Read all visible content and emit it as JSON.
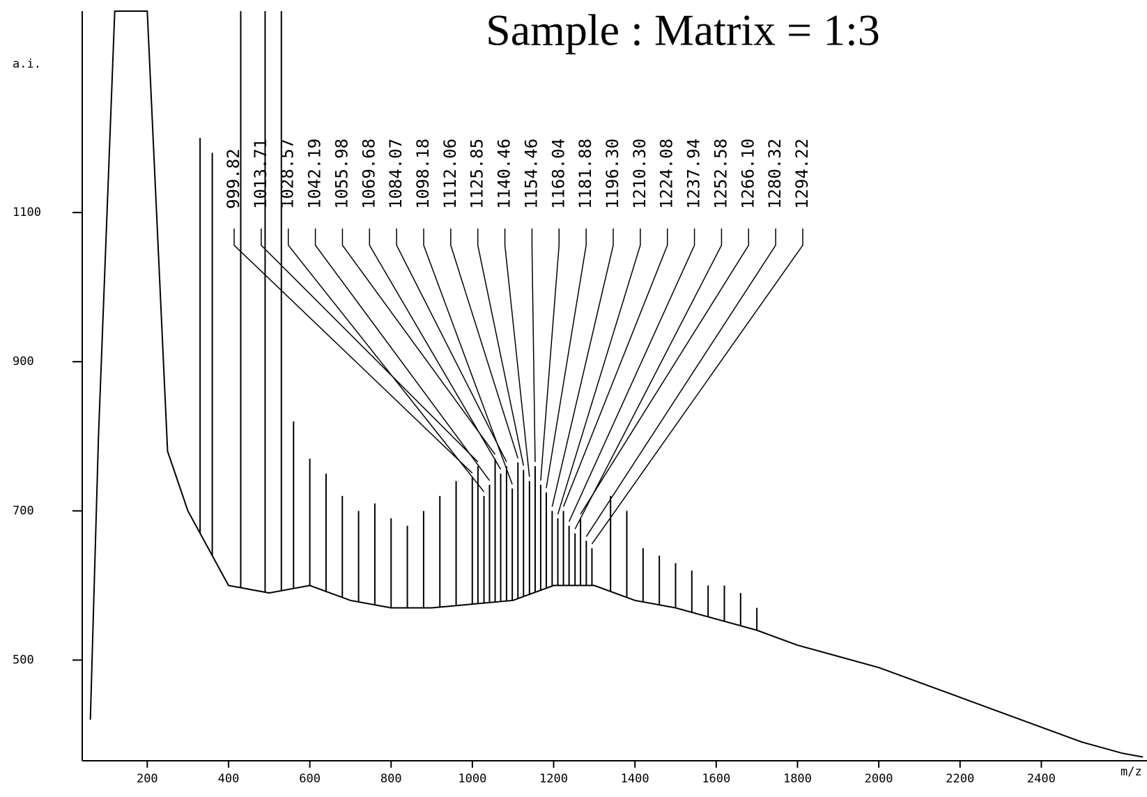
{
  "chart_data": {
    "type": "line",
    "title": "Sample : Matrix = 1:3",
    "xlabel": "m/z",
    "ylabel": "a.i.",
    "xlim": [
      40,
      2660
    ],
    "ylim": [
      365,
      1370
    ],
    "xticks": [
      200,
      400,
      600,
      800,
      1000,
      1200,
      1400,
      1600,
      1800,
      2000,
      2200,
      2400
    ],
    "yticks": [
      500,
      700,
      900,
      1100
    ],
    "color": "#000000",
    "series": [
      {
        "color": "#000000",
        "x": [
          60,
          80,
          120,
          200,
          250,
          300,
          400,
          500,
          600,
          700,
          800,
          900,
          1000,
          1100,
          1200,
          1300,
          1400,
          1500,
          1600,
          1700,
          1800,
          1900,
          2000,
          2100,
          2200,
          2300,
          2400,
          2500,
          2600,
          2650
        ],
        "values": [
          420,
          800,
          1370,
          1370,
          780,
          700,
          600,
          590,
          600,
          580,
          570,
          570,
          575,
          580,
          600,
          600,
          580,
          570,
          555,
          540,
          520,
          505,
          490,
          470,
          450,
          430,
          410,
          390,
          375,
          370
        ]
      }
    ],
    "peaks": {
      "x": [
        330,
        360,
        430,
        490,
        530,
        560,
        600,
        640,
        680,
        720,
        760,
        800,
        840,
        880,
        920,
        960,
        1340,
        1380,
        1420,
        1460,
        1500,
        1540,
        1580,
        1620,
        1660,
        1700
      ],
      "values": [
        1200,
        1180,
        1370,
        1370,
        1370,
        820,
        770,
        750,
        720,
        700,
        710,
        690,
        680,
        700,
        720,
        740,
        720,
        700,
        650,
        640,
        630,
        620,
        600,
        600,
        590,
        570
      ]
    },
    "labeled_peaks": {
      "x": [
        999.82,
        1013.71,
        1028.57,
        1042.19,
        1055.98,
        1069.68,
        1084.07,
        1098.18,
        1112.06,
        1125.85,
        1140.46,
        1154.46,
        1168.04,
        1181.88,
        1196.3,
        1210.3,
        1224.08,
        1237.94,
        1252.58,
        1266.1,
        1280.32,
        1294.22
      ],
      "value_labels": [
        "999.82",
        "1013.71",
        "1028.57",
        "1042.19",
        "1055.98",
        "1069.68",
        "1084.07",
        "1098.18",
        "1112.06",
        "1125.85",
        "1140.46",
        "1154.46",
        "1168.04",
        "1181.88",
        "1196.30",
        "1210.30",
        "1224.08",
        "1237.94",
        "1252.58",
        "1266.10",
        "1280.32",
        "1294.22"
      ],
      "values": [
        745,
        760,
        720,
        735,
        770,
        750,
        760,
        730,
        765,
        755,
        740,
        760,
        735,
        725,
        700,
        690,
        700,
        680,
        670,
        690,
        660,
        650
      ]
    }
  }
}
